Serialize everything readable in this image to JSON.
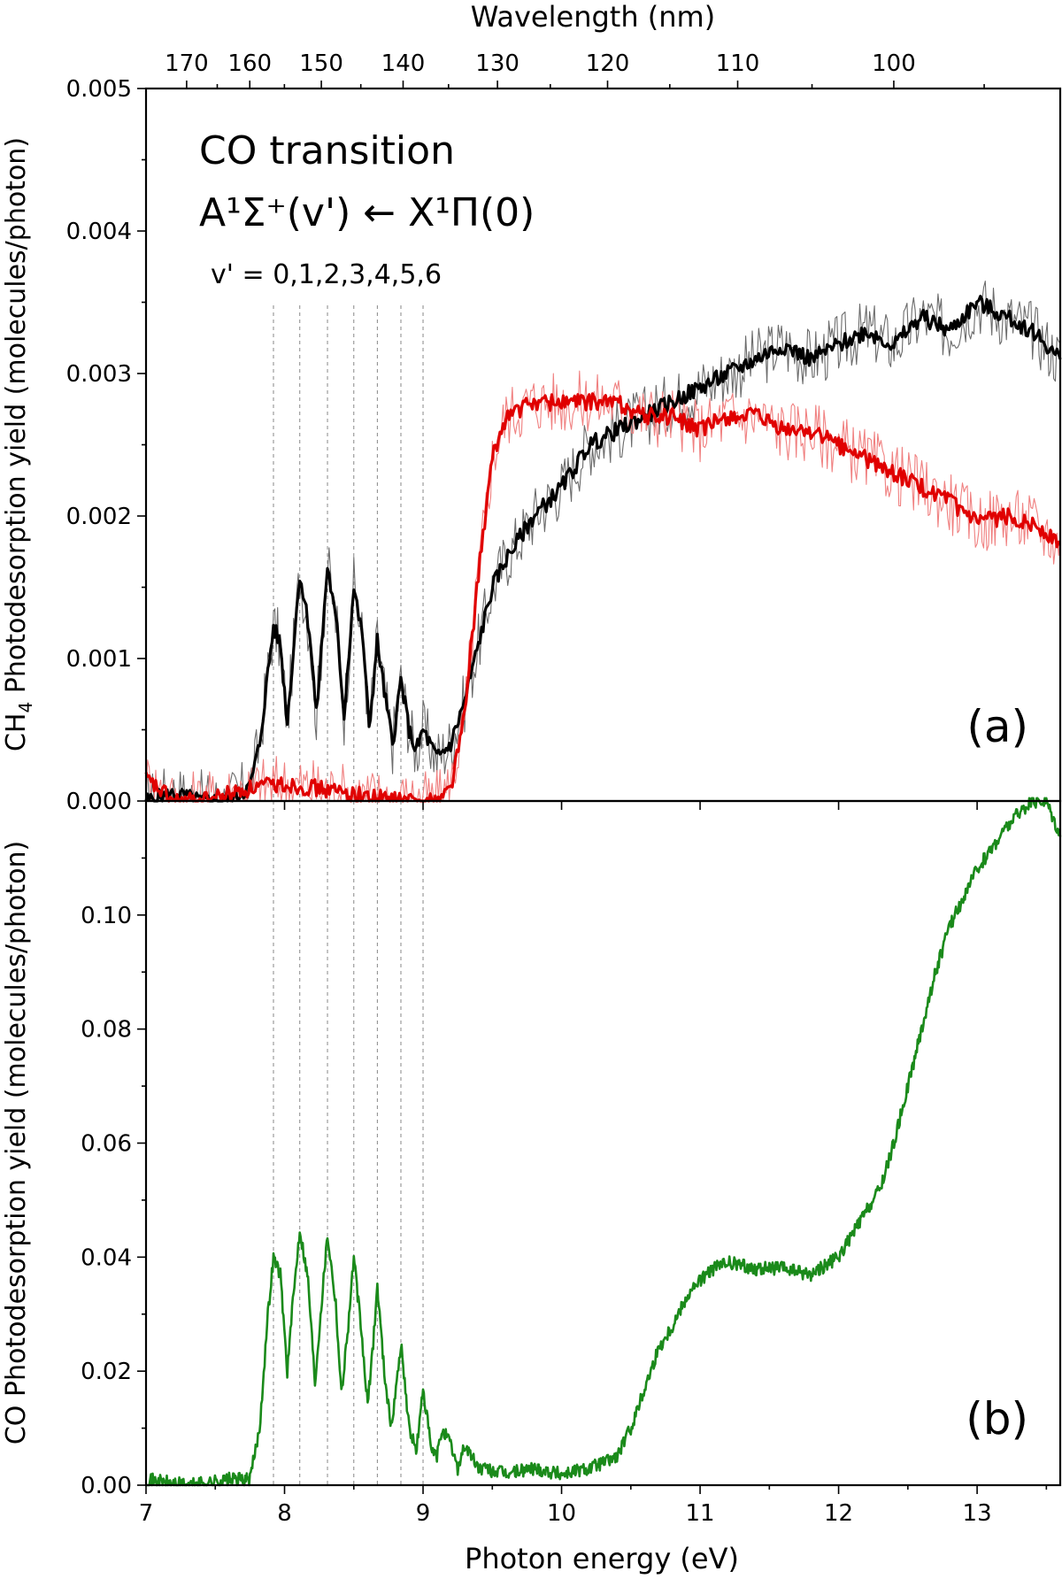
{
  "figure": {
    "top_axis_label": "Wavelength (nm)",
    "x_axis_label": "Photon energy (eV)",
    "panel_a_label": "(a)",
    "panel_b_label": "(b)",
    "annotation_line1": "CO transition",
    "annotation_line2": "A¹Σ⁺(v') ← X¹Π(0)",
    "annotation_line3": "v' = 0,1,2,3,4,5,6",
    "ylabel_a_pre": "CH",
    "ylabel_a_sub": "4",
    "ylabel_a_post": " Photodesorption yield (molecules/photon)",
    "ylabel_b": "CO Photodesorption yield (molecules/photon)"
  },
  "chart_data": [
    {
      "panel": "a",
      "type": "line",
      "xlabel": "Photon energy (eV)",
      "ylabel": "CH4 Photodesorption yield (molecules/photon)",
      "xlim": [
        7,
        13.6
      ],
      "ylim": [
        0,
        0.005
      ],
      "x_ticks": [
        7,
        8,
        9,
        10,
        11,
        12,
        13
      ],
      "y_ticks": [
        "0.000",
        "0.001",
        "0.002",
        "0.003",
        "0.004",
        "0.005"
      ],
      "top_axis": {
        "label": "Wavelength (nm)",
        "ticks_nm": [
          170,
          160,
          150,
          140,
          130,
          120,
          110,
          100
        ],
        "conversion": "E(eV) = 1239.84 / wavelength(nm)"
      },
      "vertical_markers_eV": [
        7.92,
        8.11,
        8.31,
        8.5,
        8.67,
        8.84,
        9.0
      ],
      "series": [
        {
          "name": "black",
          "color": "#000000",
          "raw_color": "#6b6b6b",
          "x": [
            7.0,
            7.2,
            7.4,
            7.6,
            7.75,
            7.82,
            7.88,
            7.92,
            7.97,
            8.02,
            8.11,
            8.18,
            8.23,
            8.31,
            8.38,
            8.43,
            8.5,
            8.57,
            8.61,
            8.67,
            8.73,
            8.78,
            8.84,
            8.9,
            8.95,
            9.0,
            9.1,
            9.2,
            9.3,
            9.4,
            9.5,
            9.6,
            9.7,
            9.8,
            9.9,
            10.0,
            10.2,
            10.4,
            10.6,
            10.8,
            11.0,
            11.2,
            11.4,
            11.6,
            11.8,
            12.0,
            12.2,
            12.4,
            12.6,
            12.8,
            13.0,
            13.2,
            13.4,
            13.6
          ],
          "y": [
            0.0,
            5e-05,
            0.0,
            0.0,
            0.0001,
            0.0004,
            0.0009,
            0.00122,
            0.0011,
            0.00055,
            0.0016,
            0.0012,
            0.0006,
            0.00165,
            0.0012,
            0.0006,
            0.0015,
            0.0011,
            0.0005,
            0.00112,
            0.0007,
            0.0004,
            0.00085,
            0.0005,
            0.00035,
            0.0005,
            0.0003,
            0.0004,
            0.0007,
            0.0011,
            0.0015,
            0.0017,
            0.00185,
            0.002,
            0.0021,
            0.0022,
            0.0025,
            0.0026,
            0.0027,
            0.0028,
            0.0029,
            0.003,
            0.0031,
            0.0032,
            0.0031,
            0.0032,
            0.0033,
            0.0032,
            0.0034,
            0.0033,
            0.0035,
            0.0034,
            0.0033,
            0.0031
          ]
        },
        {
          "name": "red",
          "color": "#e00000",
          "raw_color": "#f08080",
          "x": [
            7.0,
            7.2,
            7.4,
            7.6,
            7.8,
            8.0,
            8.3,
            8.6,
            8.9,
            9.1,
            9.2,
            9.3,
            9.4,
            9.5,
            9.6,
            9.7,
            9.8,
            10.0,
            10.2,
            10.4,
            10.6,
            10.8,
            11.0,
            11.2,
            11.4,
            11.6,
            11.8,
            12.0,
            12.2,
            12.4,
            12.6,
            12.8,
            13.0,
            13.2,
            13.4,
            13.6
          ],
          "y": [
            0.00015,
            0.0,
            0.0,
            5e-05,
            0.0001,
            0.00012,
            8e-05,
            3e-05,
            0.0,
            0.0,
            0.0001,
            0.0006,
            0.0016,
            0.0024,
            0.0027,
            0.00275,
            0.0028,
            0.0028,
            0.0028,
            0.0028,
            0.0027,
            0.0027,
            0.0026,
            0.0027,
            0.0027,
            0.0026,
            0.0026,
            0.0025,
            0.0024,
            0.0023,
            0.0022,
            0.0021,
            0.00195,
            0.002,
            0.00195,
            0.0018
          ]
        }
      ]
    },
    {
      "panel": "b",
      "type": "line",
      "xlabel": "Photon energy (eV)",
      "ylabel": "CO Photodesorption yield (molecules/photon)",
      "xlim": [
        7,
        13.6
      ],
      "ylim": [
        0,
        0.12
      ],
      "x_ticks": [
        7,
        8,
        9,
        10,
        11,
        12,
        13
      ],
      "y_ticks": [
        "0.00",
        "0.02",
        "0.04",
        "0.06",
        "0.08",
        "0.10"
      ],
      "vertical_markers_eV": [
        7.92,
        8.11,
        8.31,
        8.5,
        8.67,
        8.84,
        9.0
      ],
      "series": [
        {
          "name": "green",
          "color": "#1a8a1a",
          "x": [
            7.0,
            7.3,
            7.6,
            7.75,
            7.82,
            7.88,
            7.92,
            7.97,
            8.02,
            8.06,
            8.11,
            8.17,
            8.22,
            8.26,
            8.31,
            8.37,
            8.41,
            8.46,
            8.5,
            8.55,
            8.6,
            8.64,
            8.67,
            8.72,
            8.77,
            8.81,
            8.84,
            8.9,
            8.95,
            8.98,
            9.0,
            9.06,
            9.1,
            9.14,
            9.2,
            9.25,
            9.3,
            9.4,
            9.6,
            9.8,
            10.0,
            10.2,
            10.4,
            10.5,
            10.6,
            10.7,
            10.8,
            10.9,
            11.0,
            11.1,
            11.2,
            11.4,
            11.6,
            11.8,
            12.0,
            12.2,
            12.3,
            12.4,
            12.5,
            12.6,
            12.7,
            12.8,
            13.0,
            13.2,
            13.3,
            13.4,
            13.5,
            13.6
          ],
          "y": [
            0.001,
            0.0,
            0.001,
            0.001,
            0.01,
            0.03,
            0.04,
            0.037,
            0.02,
            0.032,
            0.045,
            0.036,
            0.018,
            0.03,
            0.044,
            0.032,
            0.016,
            0.028,
            0.04,
            0.028,
            0.014,
            0.025,
            0.035,
            0.02,
            0.01,
            0.018,
            0.025,
            0.01,
            0.006,
            0.012,
            0.017,
            0.006,
            0.005,
            0.01,
            0.007,
            0.003,
            0.007,
            0.003,
            0.002,
            0.003,
            0.002,
            0.003,
            0.005,
            0.01,
            0.017,
            0.024,
            0.028,
            0.033,
            0.036,
            0.038,
            0.039,
            0.038,
            0.038,
            0.037,
            0.04,
            0.048,
            0.052,
            0.06,
            0.07,
            0.08,
            0.09,
            0.098,
            0.108,
            0.115,
            0.118,
            0.12,
            0.12,
            0.114
          ]
        }
      ]
    }
  ]
}
